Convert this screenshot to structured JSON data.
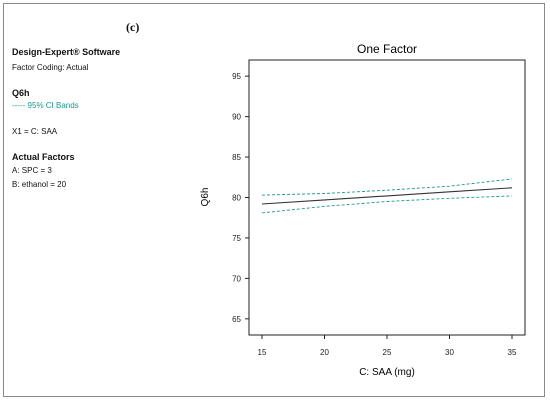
{
  "panel_label": "(c)",
  "info": {
    "software": "Design-Expert® Software",
    "coding": "Factor Coding: Actual",
    "response_name": "Q6h",
    "ci_legend": "----- 95% CI Bands",
    "x1": "X1 = C: SAA",
    "actual_factors_heading": "Actual Factors",
    "factor_a": "A: SPC = 3",
    "factor_b": "B: ethanol = 20"
  },
  "colors": {
    "fit_line": "#333333",
    "ci_band": "#1a9a8a",
    "axis": "#222222"
  },
  "chart_data": {
    "type": "line",
    "title": "One Factor",
    "xlabel": "C: SAA (mg)",
    "ylabel": "Q6h",
    "xlim": [
      15,
      35
    ],
    "ylim": [
      63,
      97
    ],
    "x_ticks": [
      15,
      20,
      25,
      30,
      35
    ],
    "y_ticks": [
      65,
      70,
      75,
      80,
      85,
      90,
      95
    ],
    "grid": false,
    "series": [
      {
        "role": "fit",
        "x": [
          15,
          20,
          25,
          30,
          35
        ],
        "values": [
          79.2,
          79.7,
          80.2,
          80.7,
          81.2
        ]
      },
      {
        "role": "upper-ci",
        "x": [
          15,
          20,
          25,
          30,
          35
        ],
        "values": [
          80.3,
          80.5,
          80.9,
          81.4,
          82.3
        ]
      },
      {
        "role": "lower-ci",
        "x": [
          15,
          20,
          25,
          30,
          35
        ],
        "values": [
          78.1,
          78.9,
          79.5,
          79.9,
          80.2
        ]
      }
    ]
  }
}
